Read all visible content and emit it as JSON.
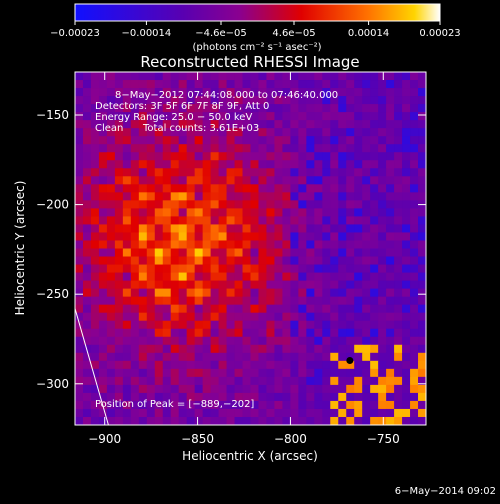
{
  "chart_data": {
    "type": "heatmap",
    "title": "Reconstructed RHESSI Image",
    "xlabel": "Heliocentric X (arcsec)",
    "ylabel": "Heliocentric Y (arcsec)",
    "xlim": [
      -916,
      -727
    ],
    "ylim": [
      -323,
      -126
    ],
    "x_ticks": [
      -900,
      -850,
      -800,
      -750
    ],
    "x_tick_labels": [
      "−900",
      "−850",
      "−800",
      "−750"
    ],
    "y_ticks": [
      -150,
      -200,
      -250,
      -300
    ],
    "y_tick_labels": [
      "−150",
      "−200",
      "−250",
      "−300"
    ],
    "colorbar": {
      "range": [
        -0.00023,
        0.00023
      ],
      "ticks": [
        -0.00023,
        -0.00014,
        -4.6e-05,
        4.6e-05,
        0.00014,
        0.00023
      ],
      "tick_labels": [
        "−0.00023",
        "−0.00014",
        "−4.6e−05",
        "4.6e−05",
        "0.00014",
        "0.00023"
      ],
      "colormap": "rhessi-blue-purple-red-yellow-white",
      "colors": [
        "#1010ff",
        "#5a00b0",
        "#8a0090",
        "#e00000",
        "#ff7000",
        "#ffd400",
        "#ffffff"
      ],
      "units_label": "(photons cm⁻² s⁻¹ asec⁻²)"
    },
    "annotations": {
      "time_range": "8−May−2012 07:44:08.000 to 07:46:40.000",
      "detectors": "Detectors: 3F 5F 6F 7F 8F 9F, Att 0",
      "energy_range": "Energy Range: 25.0 − 50.0 keV",
      "method": "Clean",
      "total_counts": "Total counts: 3.61E+03",
      "peak_label": "Position of Peak = [−889,−202]"
    },
    "peak_position": [
      -889,
      -202
    ],
    "bright_region_center": [
      -860,
      -220
    ],
    "limb_marker": [
      -768,
      -287
    ],
    "grid": false,
    "legend": "none"
  },
  "footer": {
    "date": "6−May−2014 09:02"
  }
}
